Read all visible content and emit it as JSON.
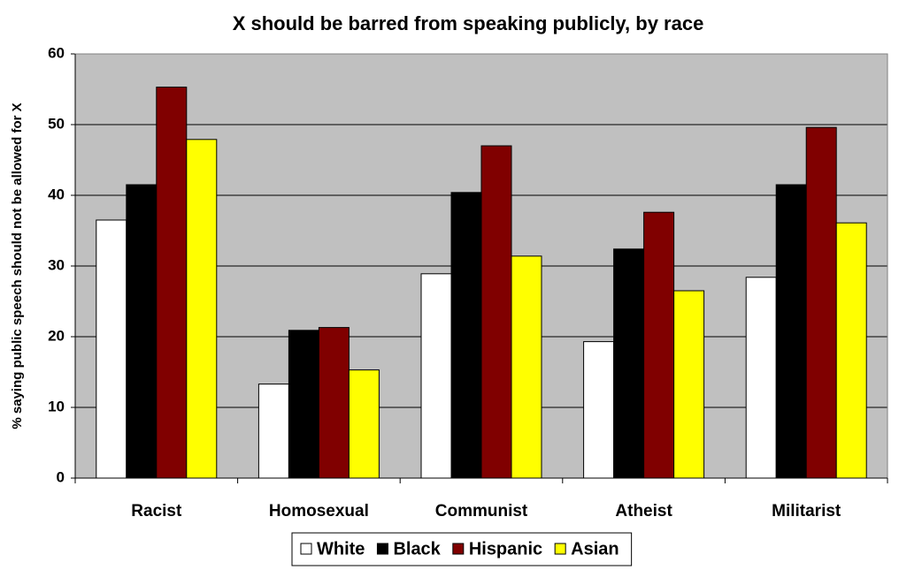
{
  "chart_data": {
    "type": "bar",
    "title": "X should be barred from speaking publicly, by race",
    "y_label": "% saying public speech should not be allowed for X",
    "categories": [
      "Racist",
      "Homosexual",
      "Communist",
      "Atheist",
      "Militarist"
    ],
    "series": [
      {
        "name": "White",
        "color": "#ffffff",
        "values": [
          36.5,
          13.3,
          28.9,
          19.3,
          28.4
        ]
      },
      {
        "name": "Black",
        "color": "#000000",
        "values": [
          41.5,
          20.9,
          40.4,
          32.4,
          41.5
        ]
      },
      {
        "name": "Hispanic",
        "color": "#800000",
        "values": [
          55.3,
          21.3,
          47.0,
          37.6,
          49.6
        ]
      },
      {
        "name": "Asian",
        "color": "#ffff00",
        "values": [
          47.9,
          15.3,
          31.4,
          26.5,
          36.1
        ]
      }
    ],
    "ylim": [
      0,
      60
    ],
    "yticks": [
      0,
      10,
      20,
      30,
      40,
      50,
      60
    ],
    "grid": true,
    "legend": "bottom",
    "plot_background": "#c0c0c0"
  }
}
